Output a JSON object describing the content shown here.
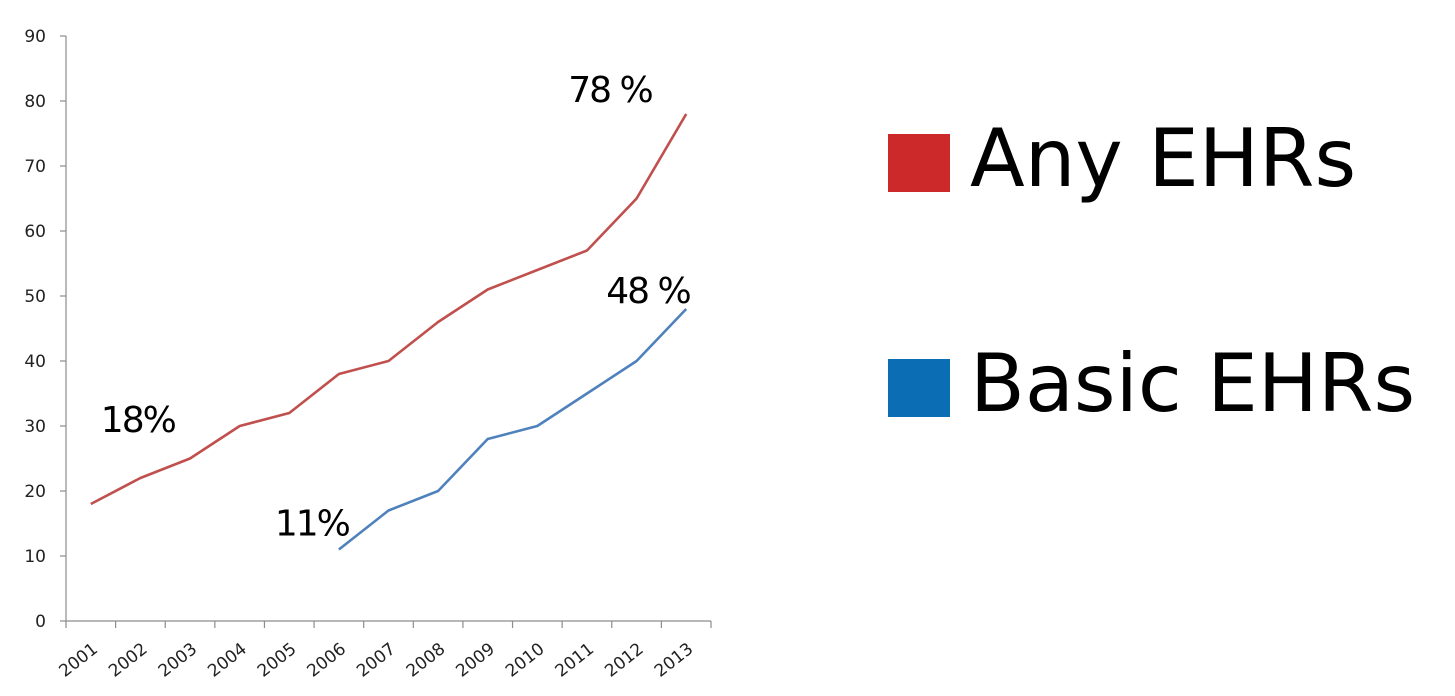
{
  "chart_data": {
    "type": "line",
    "categories": [
      "2001",
      "2002",
      "2003",
      "2004",
      "2005",
      "2006",
      "2007",
      "2008",
      "2009",
      "2010",
      "2011",
      "2012",
      "2013"
    ],
    "series": [
      {
        "name": "Any EHRs",
        "color": "#c0504d",
        "values": [
          18,
          22,
          25,
          30,
          32,
          38,
          40,
          46,
          51,
          54,
          57,
          65,
          78
        ]
      },
      {
        "name": "Basic EHRs",
        "color": "#4f81bd",
        "values": [
          null,
          null,
          null,
          null,
          null,
          11,
          17,
          20,
          28,
          30,
          35,
          40,
          48
        ]
      }
    ],
    "yticks": [
      0,
      10,
      20,
      30,
      40,
      50,
      60,
      70,
      80,
      90
    ],
    "ylim": [
      0,
      90
    ],
    "grid": false,
    "legend_position": "right",
    "annotations": [
      {
        "text": "18%",
        "series": 0,
        "year": "2001"
      },
      {
        "text": "78 %",
        "series": 0,
        "year": "2013"
      },
      {
        "text": "11%",
        "series": 1,
        "year": "2006"
      },
      {
        "text": "48 %",
        "series": 1,
        "year": "2013"
      }
    ]
  },
  "legend": {
    "items": [
      {
        "label": "Any EHRs",
        "color": "#cc2a2a"
      },
      {
        "label": "Basic EHRs",
        "color": "#0b6eb5"
      }
    ]
  }
}
